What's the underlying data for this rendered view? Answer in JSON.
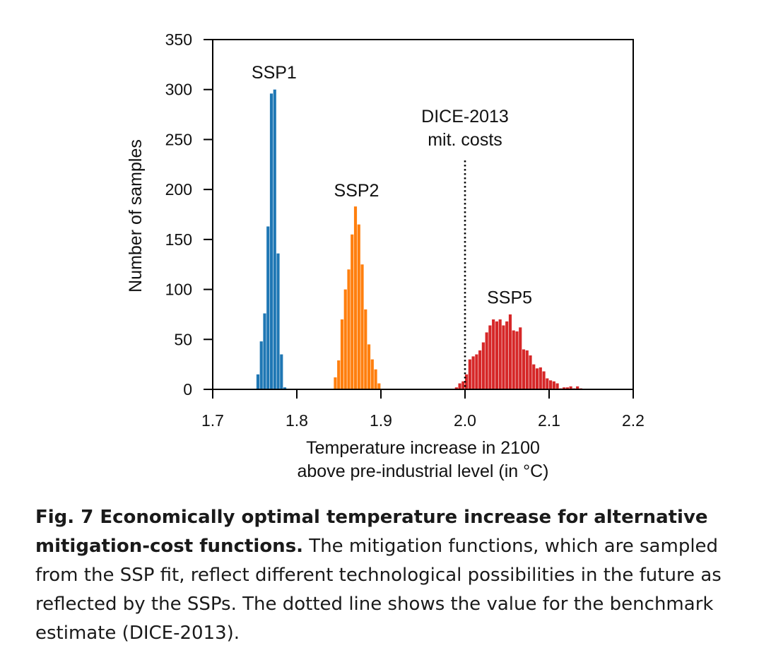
{
  "chart_data": {
    "type": "bar",
    "subtype": "histogram",
    "xlabel": "Temperature increase in 2100\nabove pre-industrial level (in °C)",
    "ylabel": "Number of samples",
    "xlim": [
      1.7,
      2.2
    ],
    "ylim": [
      0,
      350
    ],
    "bin_width": 0.004,
    "xticks": [
      "1.7",
      "1.8",
      "1.9",
      "2.0",
      "2.1",
      "2.2"
    ],
    "yticks": [
      "0",
      "50",
      "100",
      "150",
      "200",
      "250",
      "300",
      "350"
    ],
    "grid": false,
    "series": [
      {
        "name": "SSP1",
        "color": "#1f77b4",
        "bins_start": [
          1.752,
          1.756,
          1.76,
          1.764,
          1.768,
          1.772,
          1.776,
          1.78,
          1.784
        ],
        "counts": [
          15,
          48,
          76,
          163,
          296,
          300,
          136,
          35,
          2
        ]
      },
      {
        "name": "SSP2",
        "color": "#ff7f0e",
        "bins_start": [
          1.844,
          1.848,
          1.852,
          1.856,
          1.86,
          1.864,
          1.868,
          1.872,
          1.876,
          1.88,
          1.884,
          1.888,
          1.892,
          1.896
        ],
        "counts": [
          12,
          29,
          70,
          100,
          120,
          155,
          183,
          165,
          125,
          80,
          45,
          30,
          20,
          6
        ]
      },
      {
        "name": "SSP5",
        "color": "#d62728",
        "bins_start": [
          1.988,
          1.992,
          1.996,
          2.0,
          2.004,
          2.008,
          2.012,
          2.016,
          2.02,
          2.024,
          2.028,
          2.032,
          2.036,
          2.04,
          2.044,
          2.048,
          2.052,
          2.056,
          2.06,
          2.064,
          2.068,
          2.072,
          2.076,
          2.08,
          2.084,
          2.088,
          2.092,
          2.096,
          2.1,
          2.104,
          2.108,
          2.112,
          2.116,
          2.12,
          2.124,
          2.128,
          2.132,
          2.136
        ],
        "counts": [
          2,
          6,
          8,
          15,
          30,
          33,
          35,
          39,
          47,
          57,
          64,
          70,
          68,
          70,
          64,
          68,
          75,
          59,
          58,
          62,
          40,
          39,
          34,
          25,
          21,
          22,
          18,
          11,
          9,
          8,
          6,
          1,
          2,
          2,
          3,
          1,
          3,
          1
        ]
      }
    ],
    "reference_line": {
      "x": 2.0,
      "style": "dotted",
      "label_lines": [
        "DICE-2013",
        "mit. costs"
      ]
    },
    "annotations": [
      {
        "text": "SSP1",
        "x": 1.773,
        "y": 311
      },
      {
        "text": "SSP2",
        "x": 1.871,
        "y": 193
      },
      {
        "text": "SSP5",
        "x": 2.053,
        "y": 86
      }
    ]
  },
  "caption": {
    "lead": "Fig. 7 Economically optimal temperature increase for alternative mitigation-cost functions.",
    "body": " The mitigation functions, which are sampled from the SSP fit, reflect different technological possibilities in the future as reflected by the SSPs. The dotted line shows the value for the benchmark estimate (DICE-2013)."
  }
}
